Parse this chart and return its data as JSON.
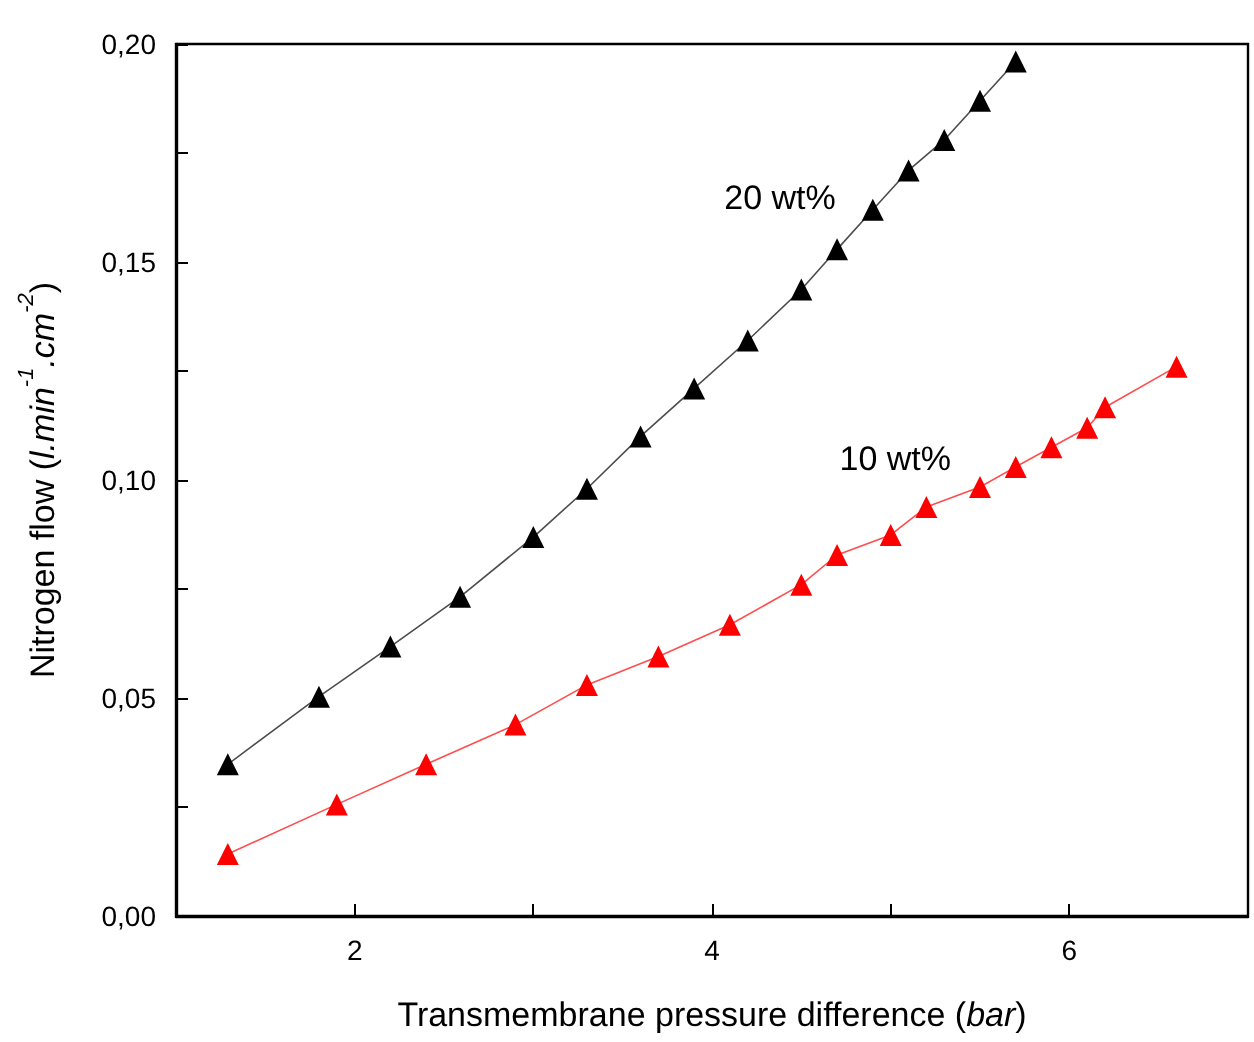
{
  "chart_data": {
    "type": "line",
    "xlabel": "Transmembrane pressure difference (bar)",
    "ylabel": "Nitrogen flow (l.min$^{-1}$.cm$^{-2}$)",
    "xlim": [
      1,
      7
    ],
    "xticks": [
      2,
      {
        "value": 3,
        "label": null
      },
      4,
      {
        "value": 5,
        "label": null
      },
      6
    ],
    "ylim": [
      0,
      0.2
    ],
    "yticks": [
      {
        "value": 0,
        "label": "0,00"
      },
      {
        "value": 0.025,
        "label": null
      },
      {
        "value": 0.05,
        "label": "0,05"
      },
      {
        "value": 0.075,
        "label": null
      },
      {
        "value": 0.1,
        "label": "0,10"
      },
      {
        "value": 0.125,
        "label": null
      },
      {
        "value": 0.15,
        "label": "0,15"
      },
      {
        "value": 0.175,
        "label": null
      },
      {
        "value": 0.2,
        "label": "0,20"
      }
    ],
    "marker": "triangle",
    "grid": false,
    "series": [
      {
        "name": "20 wt%",
        "color": "#000000",
        "x": [
          1.29,
          1.8,
          2.2,
          2.59,
          3.0,
          3.3,
          3.6,
          3.9,
          4.2,
          4.5,
          4.7,
          4.9,
          5.1,
          5.3,
          5.5,
          5.7
        ],
        "values": [
          0.0348,
          0.0503,
          0.0618,
          0.0732,
          0.0869,
          0.098,
          0.11,
          0.121,
          0.132,
          0.1437,
          0.1529,
          0.162,
          0.171,
          0.178,
          0.187,
          0.196
        ]
      },
      {
        "name": "10 wt%",
        "color": "#ff0000",
        "x": [
          1.29,
          1.9,
          2.4,
          2.9,
          3.3,
          3.7,
          4.1,
          4.5,
          4.7,
          5.0,
          5.2,
          5.5,
          5.7,
          5.9,
          6.1,
          6.2,
          6.6
        ],
        "values": [
          0.0142,
          0.0256,
          0.0348,
          0.0439,
          0.053,
          0.0595,
          0.0668,
          0.076,
          0.0828,
          0.0874,
          0.0938,
          0.0984,
          0.103,
          0.1075,
          0.112,
          0.1167,
          0.126
        ]
      }
    ]
  }
}
